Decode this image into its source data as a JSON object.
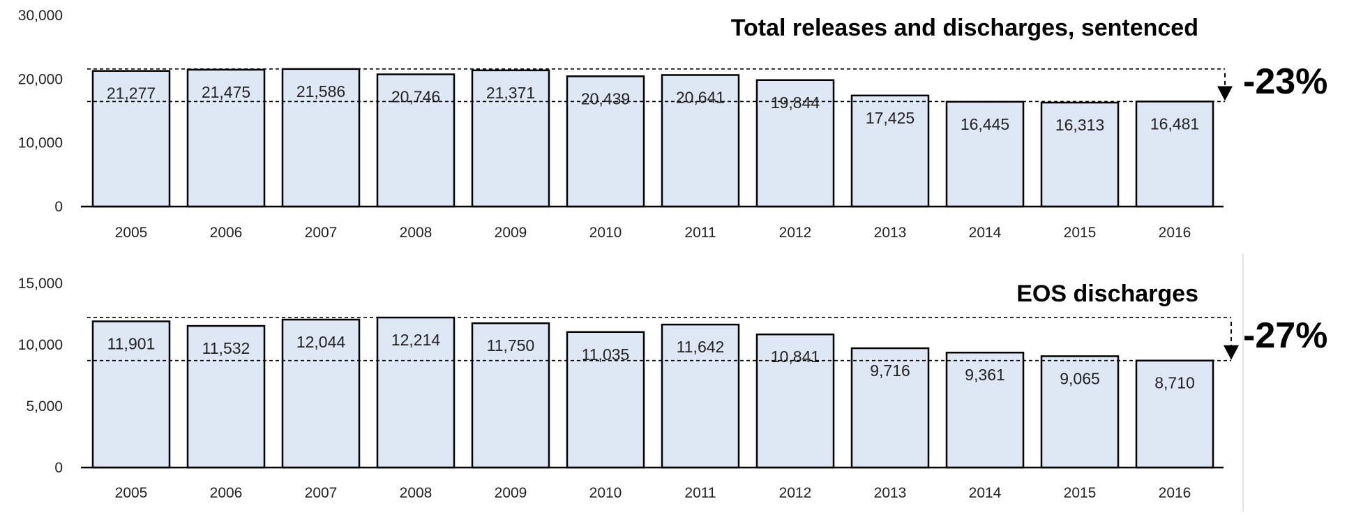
{
  "chart_data": [
    {
      "type": "bar",
      "title": "Total releases and discharges, sentenced",
      "xlabel": "",
      "ylabel": "",
      "categories": [
        "2005",
        "2006",
        "2007",
        "2008",
        "2009",
        "2010",
        "2011",
        "2012",
        "2013",
        "2014",
        "2015",
        "2016"
      ],
      "values": [
        21277,
        21475,
        21586,
        20746,
        21371,
        20439,
        20641,
        19844,
        17425,
        16445,
        16313,
        16481
      ],
      "value_labels": [
        "21,277",
        "21,475",
        "21,586",
        "20,746",
        "21,371",
        "20,439",
        "20,641",
        "19,844",
        "17,425",
        "16,445",
        "16,313",
        "16,481"
      ],
      "ylim": [
        0,
        30000
      ],
      "yticks": [
        0,
        10000,
        20000,
        30000
      ],
      "ytick_labels": [
        "0",
        "10,000",
        "20,000",
        "30,000"
      ],
      "reference_lines": [
        21586,
        16481
      ],
      "change_label": "-23%",
      "bar_color": "#dde8f4",
      "grid": false
    },
    {
      "type": "bar",
      "title": "EOS discharges",
      "xlabel": "",
      "ylabel": "",
      "categories": [
        "2005",
        "2006",
        "2007",
        "2008",
        "2009",
        "2010",
        "2011",
        "2012",
        "2013",
        "2014",
        "2015",
        "2016"
      ],
      "values": [
        11901,
        11532,
        12044,
        12214,
        11750,
        11035,
        11642,
        10841,
        9716,
        9361,
        9065,
        8710
      ],
      "value_labels": [
        "11,901",
        "11,532",
        "12,044",
        "12,214",
        "11,750",
        "11,035",
        "11,642",
        "10,841",
        "9,716",
        "9,361",
        "9,065",
        "8,710"
      ],
      "ylim": [
        0,
        15000
      ],
      "yticks": [
        0,
        5000,
        10000,
        15000
      ],
      "ytick_labels": [
        "0",
        "5,000",
        "10,000",
        "15,000"
      ],
      "reference_lines": [
        12214,
        8710
      ],
      "change_label": "-27%",
      "bar_color": "#dde8f4",
      "grid": false
    }
  ]
}
